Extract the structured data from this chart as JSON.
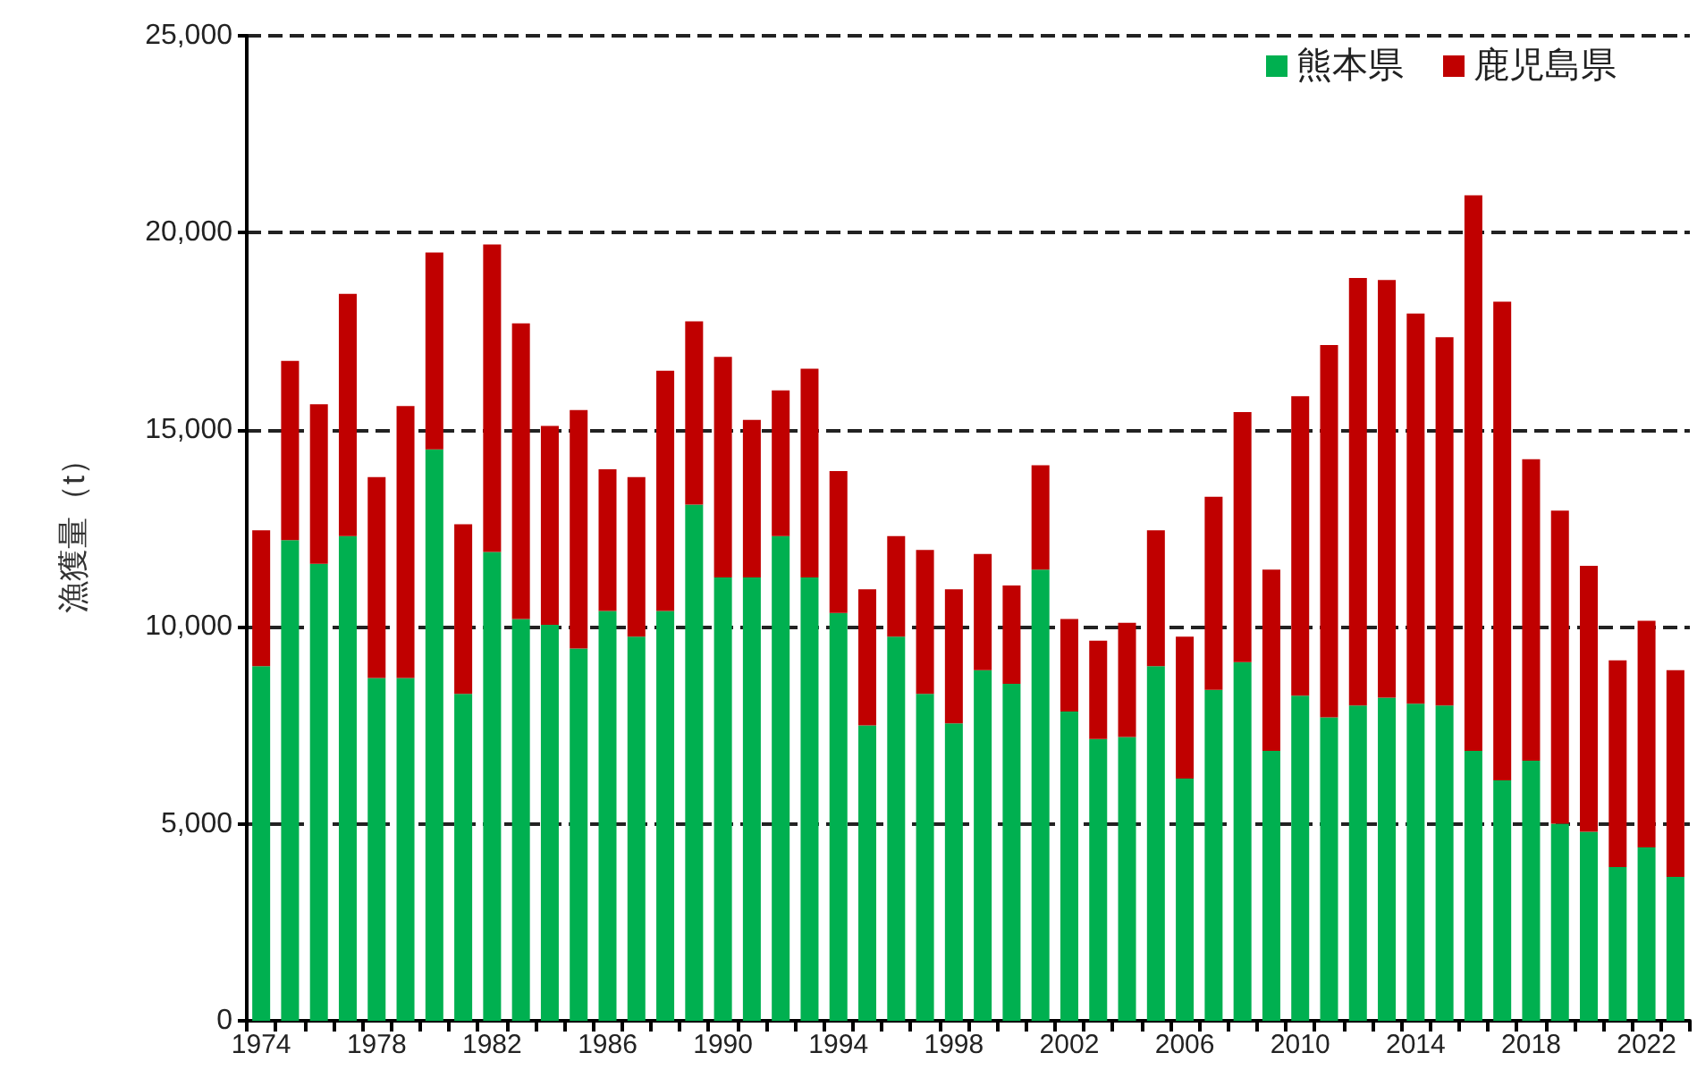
{
  "chart_data": {
    "type": "bar",
    "stacked": true,
    "ylabel": "漁獲量（t）",
    "categories": [
      "1974",
      null,
      null,
      null,
      "1978",
      null,
      null,
      null,
      "1982",
      null,
      null,
      null,
      "1986",
      null,
      null,
      null,
      "1990",
      null,
      null,
      null,
      "1994",
      null,
      null,
      null,
      "1998",
      null,
      null,
      null,
      "2002",
      null,
      null,
      null,
      "2006",
      null,
      null,
      null,
      "2010",
      null,
      null,
      null,
      "2014",
      null,
      null,
      null,
      "2018",
      null,
      null,
      null,
      "2022",
      null
    ],
    "series": [
      {
        "name": "熊本県",
        "color": "#00b050",
        "values": [
          9000,
          12200,
          11600,
          12300,
          8700,
          8700,
          14500,
          8300,
          11900,
          10200,
          10050,
          9450,
          10400,
          9750,
          10400,
          13100,
          11250,
          11250,
          12300,
          11250,
          10350,
          7500,
          9750,
          8300,
          7550,
          8900,
          8550,
          11450,
          7850,
          7150,
          7200,
          9000,
          6150,
          8400,
          9100,
          6850,
          8250,
          7700,
          8000,
          8200,
          8050,
          8000,
          6850,
          6100,
          6600,
          5000,
          4800,
          3900,
          4400,
          3650
        ]
      },
      {
        "name": "鹿児島県",
        "color": "#c00000",
        "values": [
          3450,
          4550,
          4050,
          6150,
          5100,
          6900,
          5000,
          4300,
          7800,
          7500,
          5050,
          6050,
          3600,
          4050,
          6100,
          4650,
          5600,
          4000,
          3700,
          5300,
          3600,
          3450,
          2550,
          3650,
          3400,
          2950,
          2500,
          2650,
          2350,
          2500,
          2900,
          3450,
          3600,
          4900,
          6350,
          4600,
          7600,
          9450,
          10850,
          10600,
          9900,
          9350,
          14100,
          12150,
          7650,
          7950,
          6750,
          5250,
          5750,
          5250
        ]
      }
    ],
    "ylim": [
      0,
      25000
    ],
    "yticks": [
      0,
      {
        "value": 5000,
        "label": "5,000"
      },
      {
        "value": 10000,
        "label": "10,000"
      },
      {
        "value": 15000,
        "label": "15,000"
      },
      {
        "value": 20000,
        "label": "20,000"
      },
      {
        "value": 25000,
        "label": "25,000"
      }
    ],
    "grid": "y",
    "legend": "top right",
    "line_style": "dashed"
  }
}
